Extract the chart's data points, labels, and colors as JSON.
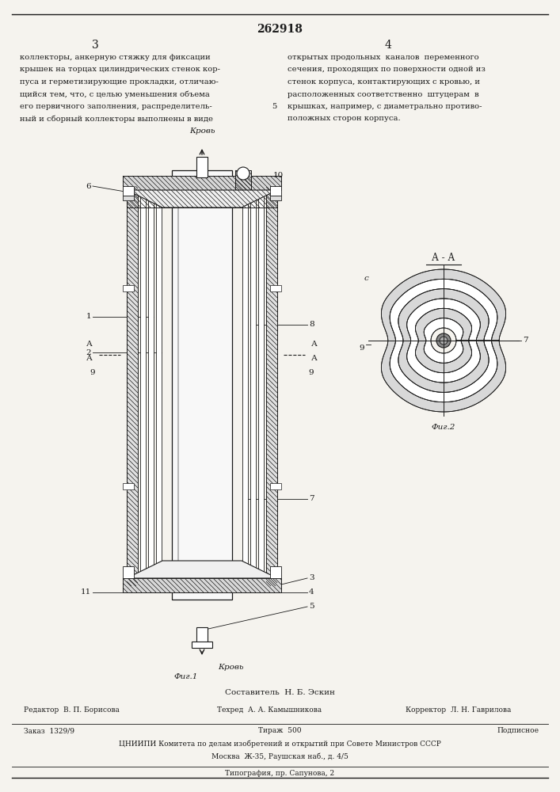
{
  "page_width": 7.07,
  "page_height": 10.0,
  "bg_color": "#f5f3ee",
  "line_color": "#1a1a1a",
  "patent_number": "262918",
  "col_left_num": "3",
  "col_right_num": "4",
  "text_top_left": "коллекторы, анкерную стяжку для фиксации\nкрышек на торцах цилиндрических стенок кор-\nпуса и герметизирующие прокладки, отличаю-\nщийся тем, что, с целью уменьшения объема\nего первичного заполнения, распределитель-\nный и сборный коллекторы выполнены в виде",
  "text_top_right": "открытых продольных  каналов  переменного\nсечения, проходящих по поверхности одной из\nстенок корпуса, контактирующих с кровью, и\nрасположенных соответственно  штуцерам  в\nкрышках, например, с диаметрально противо-\nположных сторон корпуса.",
  "col_right_num_note": "5",
  "fig1_caption": "Фиг.1",
  "fig2_caption": "Фиг.2",
  "fig2_label": "А - А",
  "krov_top": "Кровь",
  "krov_bottom": "Кровь",
  "label_6": "6",
  "label_10": "10",
  "label_1": "1",
  "label_2": "2",
  "label_8": "8",
  "label_A": "А",
  "label_9": "9",
  "label_7": "7",
  "label_3": "3",
  "label_4": "4",
  "label_5": "5",
  "label_11": "11",
  "label_c": "с",
  "footer_compiler": "Составитель  Н. Б. Эскин",
  "footer_editor": "Редактор  В. П. Борисова",
  "footer_tech": "Техред  А. А. Камышникова",
  "footer_corrector": "Корректор  Л. Н. Гаврилова",
  "footer_order": "Заказ  1329/9",
  "footer_print": "Тираж  500",
  "footer_sign": "Подписное",
  "footer_cniipи": "ЦНИИПИ Комитета по делам изобретений и открытий при Совете Министров СССР",
  "footer_moscow": "Москва  Ж-35, Раушская наб., д. 4/5",
  "footer_typography": "Типография, пр. Сапунова, 2"
}
